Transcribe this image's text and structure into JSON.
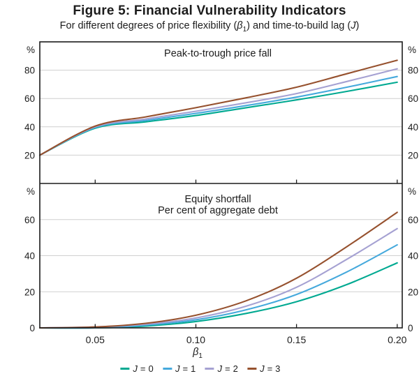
{
  "figure": {
    "title": "Figure 5: Financial Vulnerability Indicators",
    "subtitle": {
      "pre": "For different degrees of price flexibility (",
      "beta_symbol": "β",
      "beta_subscript": "1",
      "mid": ") and time-to-build lag (",
      "j_symbol": "J",
      "post": ")"
    }
  },
  "chart_data": {
    "type": "line",
    "grid": true,
    "legend_position": "bottom",
    "x_axis_label": {
      "symbol": "β",
      "subscript": "1"
    },
    "xlim": [
      0.0225,
      0.2025
    ],
    "x": [
      0.0225,
      0.05,
      0.075,
      0.1,
      0.125,
      0.15,
      0.175,
      0.2
    ],
    "x_ticks": {
      "values": [
        0.05,
        0.1,
        0.15,
        0.2
      ],
      "labels": [
        "0.05",
        "0.10",
        "0.15",
        "0.20"
      ]
    },
    "panels": [
      {
        "title": "Peak-to-trough price fall",
        "subtitle": "",
        "unit": "%",
        "ylim": [
          0,
          100
        ],
        "y_ticks": [
          20,
          40,
          60,
          80
        ],
        "series": [
          {
            "name": "J = 0",
            "color": "#00A991",
            "values": [
              20,
              39,
              43.5,
              48,
              53.5,
              59,
              65,
              71.5
            ]
          },
          {
            "name": "J = 1",
            "color": "#45A9DC",
            "values": [
              20,
              39.5,
              44.5,
              49.5,
              55,
              61,
              68,
              75.5
            ]
          },
          {
            "name": "J = 2",
            "color": "#A5A1D2",
            "values": [
              20,
              40,
              45.5,
              51,
              57,
              63.5,
              72,
              81
            ]
          },
          {
            "name": "J = 3",
            "color": "#96512E",
            "values": [
              20,
              40.5,
              47,
              53.5,
              60.5,
              68,
              77.5,
              87
            ]
          }
        ]
      },
      {
        "title": "Equity shortfall",
        "subtitle": "Per cent of aggregate debt",
        "unit": "%",
        "ylim": [
          0,
          80
        ],
        "y_ticks": [
          0,
          20,
          40,
          60
        ],
        "series": [
          {
            "name": "J = 0",
            "color": "#00A991",
            "values": [
              0,
              0,
              1,
              3.5,
              8,
              14.5,
              24,
              36
            ]
          },
          {
            "name": "J = 1",
            "color": "#45A9DC",
            "values": [
              0,
              0,
              1.5,
              4.5,
              10,
              18.5,
              31,
              46
            ]
          },
          {
            "name": "J = 2",
            "color": "#A5A1D2",
            "values": [
              0,
              0.5,
              2,
              5.5,
              12,
              22.5,
              38,
              55
            ]
          },
          {
            "name": "J = 3",
            "color": "#96512E",
            "values": [
              0,
              0.5,
              2.5,
              7,
              15,
              27.5,
              45,
              64
            ]
          }
        ]
      }
    ],
    "legend": [
      {
        "symbol": "J",
        "value": "= 0",
        "color": "#00A991"
      },
      {
        "symbol": "J",
        "value": "= 1",
        "color": "#45A9DC"
      },
      {
        "symbol": "J",
        "value": "= 2",
        "color": "#A5A1D2"
      },
      {
        "symbol": "J",
        "value": "= 3",
        "color": "#96512E"
      }
    ]
  }
}
